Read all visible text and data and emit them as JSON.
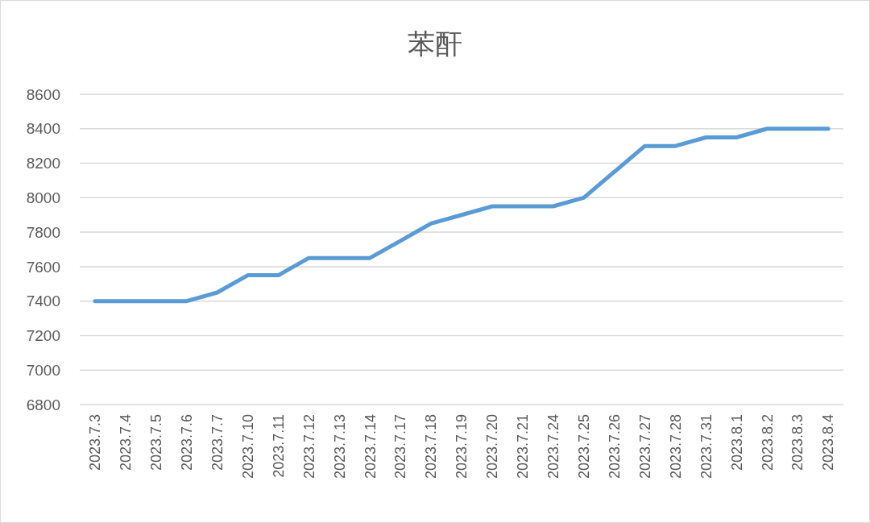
{
  "chart_data": {
    "type": "line",
    "title": "苯酐",
    "categories": [
      "2023.7.3",
      "2023.7.4",
      "2023.7.5",
      "2023.7.6",
      "2023.7.7",
      "2023.7.10",
      "2023.7.11",
      "2023.7.12",
      "2023.7.13",
      "2023.7.14",
      "2023.7.17",
      "2023.7.18",
      "2023.7.19",
      "2023.7.20",
      "2023.7.21",
      "2023.7.24",
      "2023.7.25",
      "2023.7.26",
      "2023.7.27",
      "2023.7.28",
      "2023.7.31",
      "2023.8.1",
      "2023.8.2",
      "2023.8.3",
      "2023.8.4"
    ],
    "series": [
      {
        "color": "#5b9bd5",
        "values": [
          7400,
          7400,
          7400,
          7400,
          7450,
          7550,
          7550,
          7650,
          7650,
          7650,
          7750,
          7850,
          7900,
          7950,
          7950,
          7950,
          8000,
          8150,
          8300,
          8300,
          8350,
          8350,
          8400,
          8400,
          8400
        ]
      }
    ],
    "ylim": [
      6800,
      8600
    ],
    "yticks": [
      6800,
      7000,
      7200,
      7400,
      7600,
      7800,
      8000,
      8200,
      8400,
      8600
    ],
    "grid": "y",
    "marker": "none",
    "line_style": "solid"
  }
}
